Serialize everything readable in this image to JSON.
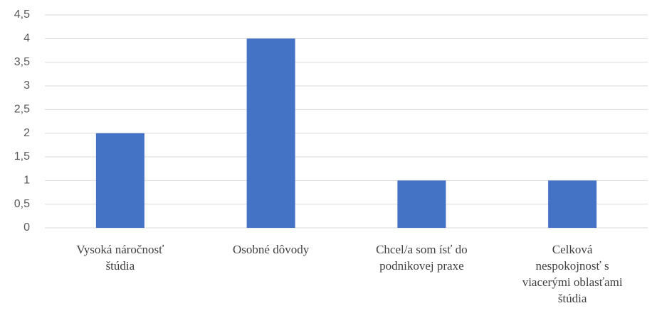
{
  "chart_data": {
    "type": "bar",
    "categories": [
      "Vysoká náročnosť\nštúdia",
      "Osobné dôvody",
      "Chcel/a som ísť do\npodnikovej praxe",
      "Celková\nnespokojnosť s\nviacerými oblasťami\nštúdia"
    ],
    "values": [
      2,
      4,
      1,
      1
    ],
    "color": "#4472c4",
    "ylim": [
      0,
      4.5
    ],
    "yticks": [
      0,
      {
        "value": 0.5,
        "label": "0,5"
      },
      1,
      {
        "value": 1.5,
        "label": "1,5"
      },
      2,
      {
        "value": 2.5,
        "label": "2,5"
      },
      3,
      {
        "value": 3.5,
        "label": "3,5"
      },
      4,
      {
        "value": 4.5,
        "label": "4,5"
      }
    ],
    "grid": true
  }
}
